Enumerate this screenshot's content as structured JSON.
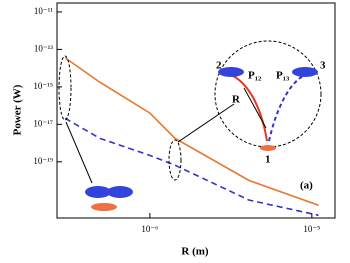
{
  "chart_data": {
    "type": "line",
    "y_label": "Power (W)",
    "x_label": "R (m)",
    "x": [
      3e-07,
      4.9e-07,
      1e-06,
      1.43e-06,
      4.1e-06,
      1.1e-05
    ],
    "series": [
      {
        "color": "#e8772e",
        "dash": false,
        "values": [
          3.5e-14,
          1.8e-15,
          4e-17,
          1.8e-18,
          1e-20,
          4.8e-22
        ]
      },
      {
        "color": "#3333cc",
        "dash": true,
        "values": [
          2.1e-17,
          1.8e-18,
          2.2e-19,
          6.6e-20,
          9e-22,
          1.4e-22
        ]
      }
    ],
    "xlim": [
      2.67e-07,
      1.39e-05
    ],
    "ylim": [
      1e-22,
      3e-11
    ],
    "log_x": true,
    "log_y": true,
    "xticks": [
      {
        "value": 1e-06,
        "label": "10⁻⁶"
      },
      {
        "value": 1e-05,
        "label": "10⁻⁵"
      }
    ],
    "yticks": [
      {
        "value": 1e-19,
        "label": "10⁻¹⁹"
      },
      {
        "value": 1e-17,
        "label": "10⁻¹⁷"
      },
      {
        "value": 1e-15,
        "label": "10⁻¹⁵"
      },
      {
        "value": 1e-13,
        "label": "10⁻¹³"
      },
      {
        "value": 1e-11,
        "label": "10⁻¹¹"
      }
    ],
    "annotations": [
      "(a)",
      "2",
      "P₁₂",
      "P₁₃",
      "3",
      "R",
      "1"
    ]
  }
}
